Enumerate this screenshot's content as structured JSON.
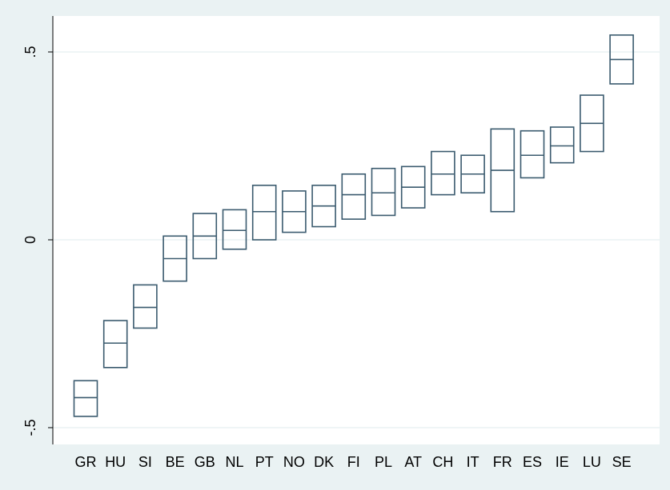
{
  "chart_data": {
    "type": "boxplot",
    "title": "",
    "xlabel": "",
    "ylabel": "",
    "ylim": [
      -0.55,
      0.6
    ],
    "y_ticks": [
      {
        "value": -0.5,
        "label": "-.5"
      },
      {
        "value": 0,
        "label": "0"
      },
      {
        "value": 0.5,
        "label": ".5"
      }
    ],
    "grid": true,
    "categories": [
      "GR",
      "HU",
      "SI",
      "BE",
      "GB",
      "NL",
      "PT",
      "NO",
      "DK",
      "FI",
      "PL",
      "AT",
      "CH",
      "IT",
      "FR",
      "ES",
      "IE",
      "LU",
      "SE"
    ],
    "boxes": [
      {
        "low": -0.47,
        "mid": -0.42,
        "high": -0.375
      },
      {
        "low": -0.34,
        "mid": -0.275,
        "high": -0.215
      },
      {
        "low": -0.235,
        "mid": -0.18,
        "high": -0.12
      },
      {
        "low": -0.11,
        "mid": -0.05,
        "high": 0.01
      },
      {
        "low": -0.05,
        "mid": 0.01,
        "high": 0.07
      },
      {
        "low": -0.025,
        "mid": 0.025,
        "high": 0.08
      },
      {
        "low": 0.0,
        "mid": 0.075,
        "high": 0.145
      },
      {
        "low": 0.02,
        "mid": 0.075,
        "high": 0.13
      },
      {
        "low": 0.035,
        "mid": 0.09,
        "high": 0.145
      },
      {
        "low": 0.055,
        "mid": 0.12,
        "high": 0.175
      },
      {
        "low": 0.065,
        "mid": 0.125,
        "high": 0.19
      },
      {
        "low": 0.085,
        "mid": 0.14,
        "high": 0.195
      },
      {
        "low": 0.12,
        "mid": 0.175,
        "high": 0.235
      },
      {
        "low": 0.125,
        "mid": 0.175,
        "high": 0.225
      },
      {
        "low": 0.075,
        "mid": 0.185,
        "high": 0.295
      },
      {
        "low": 0.165,
        "mid": 0.225,
        "high": 0.29
      },
      {
        "low": 0.205,
        "mid": 0.25,
        "high": 0.3
      },
      {
        "low": 0.235,
        "mid": 0.31,
        "high": 0.385
      },
      {
        "low": 0.415,
        "mid": 0.48,
        "high": 0.545
      }
    ],
    "box_color": "#3a5a6e"
  }
}
